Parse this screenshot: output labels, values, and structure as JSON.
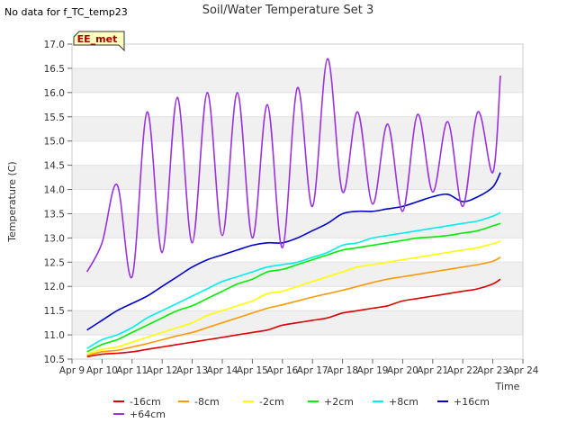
{
  "notice": "No data for f_TC_temp23",
  "site_badge": "EE_met",
  "chart_data": {
    "type": "line",
    "title": "Soil/Water Temperature Set 3",
    "xlabel": "Time",
    "ylabel": "Temperature (C)",
    "xlim": [
      "Apr 9",
      "Apr 24"
    ],
    "ylim": [
      10.5,
      17.0
    ],
    "x_tick_labels": [
      "Apr 9",
      "Apr 10",
      "Apr 11",
      "Apr 12",
      "Apr 13",
      "Apr 14",
      "Apr 15",
      "Apr 16",
      "Apr 17",
      "Apr 18",
      "Apr 19",
      "Apr 20",
      "Apr 21",
      "Apr 22",
      "Apr 23",
      "Apr 24"
    ],
    "y_tick_labels": [
      "10.5",
      "11.0",
      "11.5",
      "12.0",
      "12.5",
      "13.0",
      "13.5",
      "14.0",
      "14.5",
      "15.0",
      "15.5",
      "16.0",
      "16.5",
      "17.0"
    ],
    "grid": "horizontal bands",
    "legend_position": "bottom",
    "x": [
      "Apr 9 12:00",
      "Apr 10 00:00",
      "Apr 10 12:00",
      "Apr 11 00:00",
      "Apr 11 12:00",
      "Apr 12 00:00",
      "Apr 12 12:00",
      "Apr 13 00:00",
      "Apr 13 12:00",
      "Apr 14 00:00",
      "Apr 14 12:00",
      "Apr 15 00:00",
      "Apr 15 12:00",
      "Apr 16 00:00",
      "Apr 16 12:00",
      "Apr 17 00:00",
      "Apr 17 12:00",
      "Apr 18 00:00",
      "Apr 18 12:00",
      "Apr 19 00:00",
      "Apr 19 12:00",
      "Apr 20 00:00",
      "Apr 20 12:00",
      "Apr 21 00:00",
      "Apr 21 12:00",
      "Apr 22 00:00",
      "Apr 22 12:00",
      "Apr 23 00:00",
      "Apr 23 06:00"
    ],
    "series": [
      {
        "name": "-16cm",
        "color": "#dd0000",
        "values": [
          10.55,
          10.6,
          10.62,
          10.65,
          10.7,
          10.75,
          10.8,
          10.85,
          10.9,
          10.95,
          11.0,
          11.05,
          11.1,
          11.2,
          11.25,
          11.3,
          11.35,
          11.45,
          11.5,
          11.55,
          11.6,
          11.7,
          11.75,
          11.8,
          11.85,
          11.9,
          11.95,
          12.05,
          12.15
        ]
      },
      {
        "name": "-8cm",
        "color": "#ff9900",
        "values": [
          10.58,
          10.65,
          10.68,
          10.75,
          10.82,
          10.9,
          10.98,
          11.05,
          11.15,
          11.25,
          11.35,
          11.45,
          11.55,
          11.62,
          11.7,
          11.78,
          11.85,
          11.92,
          12.0,
          12.08,
          12.15,
          12.2,
          12.25,
          12.3,
          12.35,
          12.4,
          12.45,
          12.52,
          12.6
        ]
      },
      {
        "name": "-2cm",
        "color": "#ffff00",
        "values": [
          10.6,
          10.7,
          10.75,
          10.85,
          10.95,
          11.05,
          11.15,
          11.25,
          11.4,
          11.5,
          11.6,
          11.7,
          11.85,
          11.9,
          12.0,
          12.1,
          12.2,
          12.3,
          12.4,
          12.45,
          12.5,
          12.55,
          12.6,
          12.65,
          12.7,
          12.75,
          12.8,
          12.88,
          12.93
        ]
      },
      {
        "name": "+2cm",
        "color": "#00ee00",
        "values": [
          10.65,
          10.8,
          10.9,
          11.05,
          11.2,
          11.35,
          11.5,
          11.6,
          11.75,
          11.9,
          12.05,
          12.15,
          12.3,
          12.35,
          12.45,
          12.55,
          12.65,
          12.75,
          12.8,
          12.85,
          12.9,
          12.95,
          13.0,
          13.02,
          13.05,
          13.1,
          13.15,
          13.25,
          13.3
        ]
      },
      {
        "name": "+8cm",
        "color": "#00eeee",
        "values": [
          10.72,
          10.9,
          11.0,
          11.15,
          11.35,
          11.5,
          11.65,
          11.8,
          11.95,
          12.1,
          12.2,
          12.3,
          12.4,
          12.45,
          12.5,
          12.6,
          12.7,
          12.85,
          12.9,
          13.0,
          13.05,
          13.1,
          13.15,
          13.2,
          13.25,
          13.3,
          13.35,
          13.45,
          13.52
        ]
      },
      {
        "name": "+16cm",
        "color": "#0000cc",
        "values": [
          11.1,
          11.3,
          11.5,
          11.65,
          11.8,
          12.0,
          12.2,
          12.4,
          12.55,
          12.65,
          12.75,
          12.85,
          12.9,
          12.9,
          13.0,
          13.15,
          13.3,
          13.5,
          13.55,
          13.55,
          13.6,
          13.65,
          13.75,
          13.85,
          13.9,
          13.75,
          13.85,
          14.05,
          14.35
        ]
      },
      {
        "name": "+64cm",
        "color": "#9933dd",
        "values": [
          12.3,
          12.9,
          14.1,
          12.2,
          15.6,
          12.7,
          15.9,
          12.9,
          16.0,
          13.05,
          16.0,
          13.0,
          15.75,
          12.8,
          16.1,
          13.65,
          16.7,
          13.95,
          15.6,
          13.7,
          15.35,
          13.55,
          15.55,
          13.95,
          15.4,
          13.65,
          15.6,
          14.35,
          16.35
        ]
      }
    ]
  }
}
